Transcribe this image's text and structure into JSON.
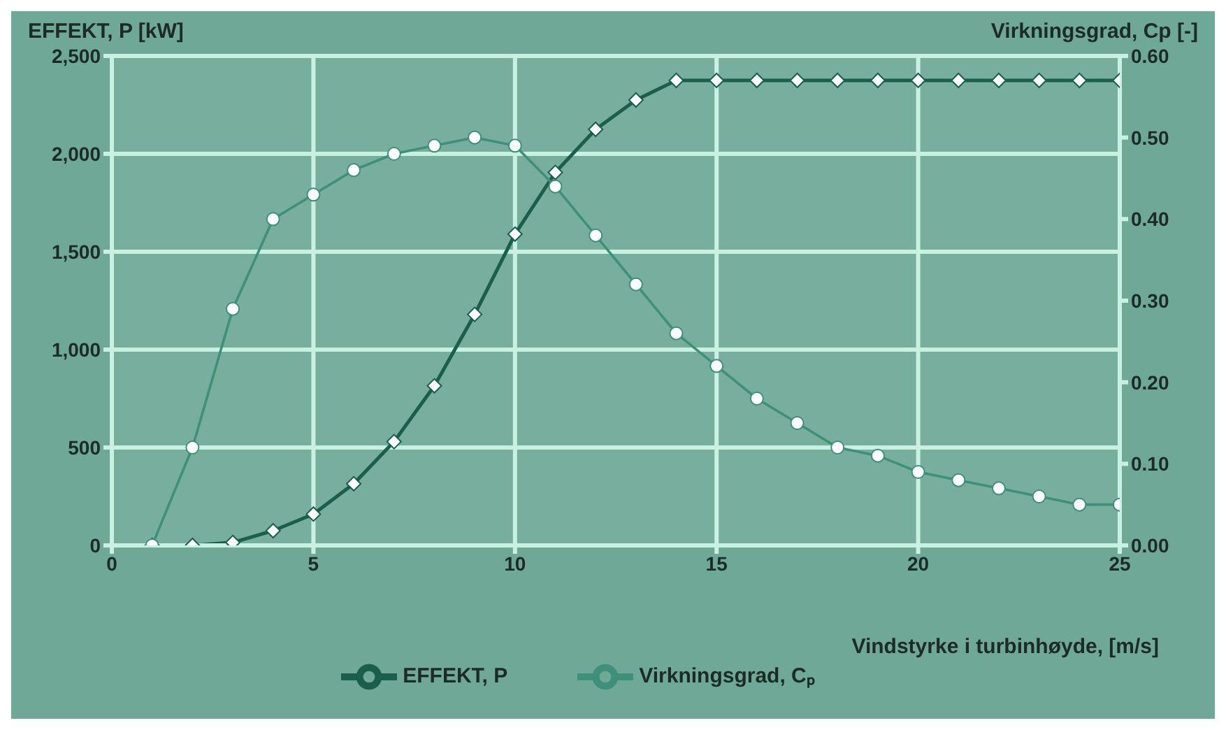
{
  "chart_data": {
    "type": "line",
    "ylabel": "EFFEKT, P [kW]",
    "y2label": "Virkningsgrad, Cp [-]",
    "xlabel": "Vindstyrke i turbinhøyde, [m/s]",
    "x": [
      1,
      2,
      3,
      4,
      5,
      6,
      7,
      8,
      9,
      10,
      11,
      12,
      13,
      14,
      15,
      16,
      17,
      18,
      19,
      20,
      21,
      22,
      23,
      24,
      25
    ],
    "series": [
      {
        "name": "EFFEKT, P",
        "color": "#1b5e4c",
        "marker": "diamond",
        "values": [
          0,
          0,
          15,
          75,
          160,
          315,
          530,
          815,
          1180,
          1590,
          1905,
          2125,
          2275,
          2375,
          2375,
          2375,
          2375,
          2375,
          2375,
          2375,
          2375,
          2375,
          2375,
          2375,
          2375
        ]
      },
      {
        "name": "Virkningsgrad, Cₚ",
        "color": "#3f8f7a",
        "marker": "circle",
        "axis": "y2",
        "values": [
          0,
          0.12,
          0.29,
          0.4,
          0.43,
          0.46,
          0.48,
          0.49,
          0.5,
          0.49,
          0.44,
          0.38,
          0.32,
          0.26,
          0.22,
          0.18,
          0.15,
          0.12,
          0.11,
          0.09,
          0.08,
          0.07,
          0.06,
          0.05,
          0.05
        ]
      }
    ],
    "xlim": [
      0,
      25
    ],
    "xticks": [
      0,
      5,
      10,
      15,
      20,
      25
    ],
    "ylim": [
      0,
      2500
    ],
    "yticks": [
      0,
      {
        "value": 500,
        "label": "500"
      },
      {
        "value": 1000,
        "label": "1,000"
      },
      {
        "value": 1500,
        "label": "1,500"
      },
      {
        "value": 2000,
        "label": "2,000"
      },
      {
        "value": 2500,
        "label": "2,500"
      }
    ],
    "y2lim": [
      0,
      0.6
    ],
    "y2ticks": [
      {
        "value": 0,
        "label": "0.00"
      },
      {
        "value": 0.1,
        "label": "0.10"
      },
      {
        "value": 0.2,
        "label": "0.20"
      },
      {
        "value": 0.3,
        "label": "0.30"
      },
      {
        "value": 0.4,
        "label": "0.40"
      },
      {
        "value": 0.5,
        "label": "0.50"
      },
      {
        "value": 0.6,
        "label": "0.60"
      }
    ],
    "grid": true,
    "legend": "bottom",
    "line_style": "solid"
  }
}
